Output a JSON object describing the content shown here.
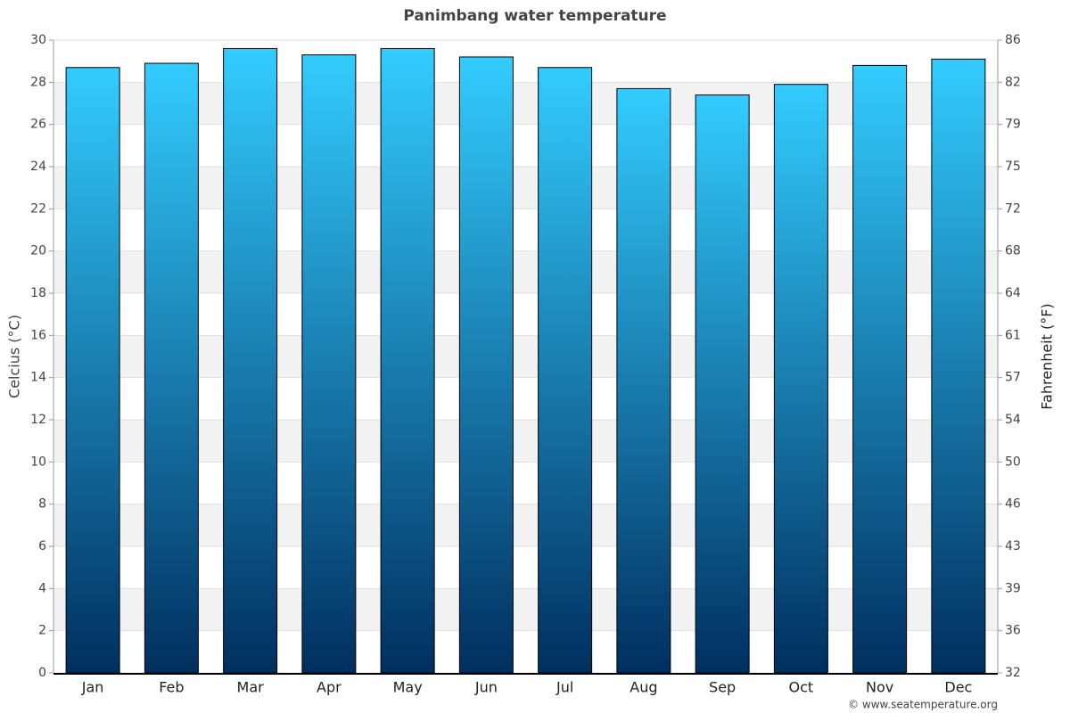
{
  "chart_data": {
    "type": "bar",
    "title": "Panimbang water temperature",
    "categories": [
      "Jan",
      "Feb",
      "Mar",
      "Apr",
      "May",
      "Jun",
      "Jul",
      "Aug",
      "Sep",
      "Oct",
      "Nov",
      "Dec"
    ],
    "values": [
      28.7,
      28.9,
      29.6,
      29.3,
      29.6,
      29.2,
      28.7,
      27.7,
      27.4,
      27.9,
      28.8,
      29.1
    ],
    "gradient": [
      "#33ccff",
      "#002f5f"
    ],
    "ylabel": "Celcius (°C)",
    "y2label": "Fahrenheit (°F)",
    "ylim": [
      0,
      30
    ],
    "yticks": [
      0,
      2,
      4,
      6,
      8,
      10,
      12,
      14,
      16,
      18,
      20,
      22,
      24,
      26,
      28,
      30
    ],
    "y2lim": [
      32,
      86
    ],
    "y2ticks": [
      32,
      {
        "value": 35.6,
        "label": "36"
      },
      {
        "value": 39.2,
        "label": "39"
      },
      {
        "value": 42.8,
        "label": "43"
      },
      {
        "value": 46.4,
        "label": "46"
      },
      50,
      {
        "value": 53.6,
        "label": "54"
      },
      {
        "value": 57.2,
        "label": "57"
      },
      {
        "value": 60.8,
        "label": "61"
      },
      {
        "value": 64.4,
        "label": "64"
      },
      68,
      {
        "value": 71.6,
        "label": "72"
      },
      {
        "value": 75.2,
        "label": "75"
      },
      {
        "value": 78.8,
        "label": "79"
      },
      {
        "value": 82.4,
        "label": "82"
      },
      86
    ],
    "grid": true,
    "credit": "© www.seatemperature.org"
  }
}
